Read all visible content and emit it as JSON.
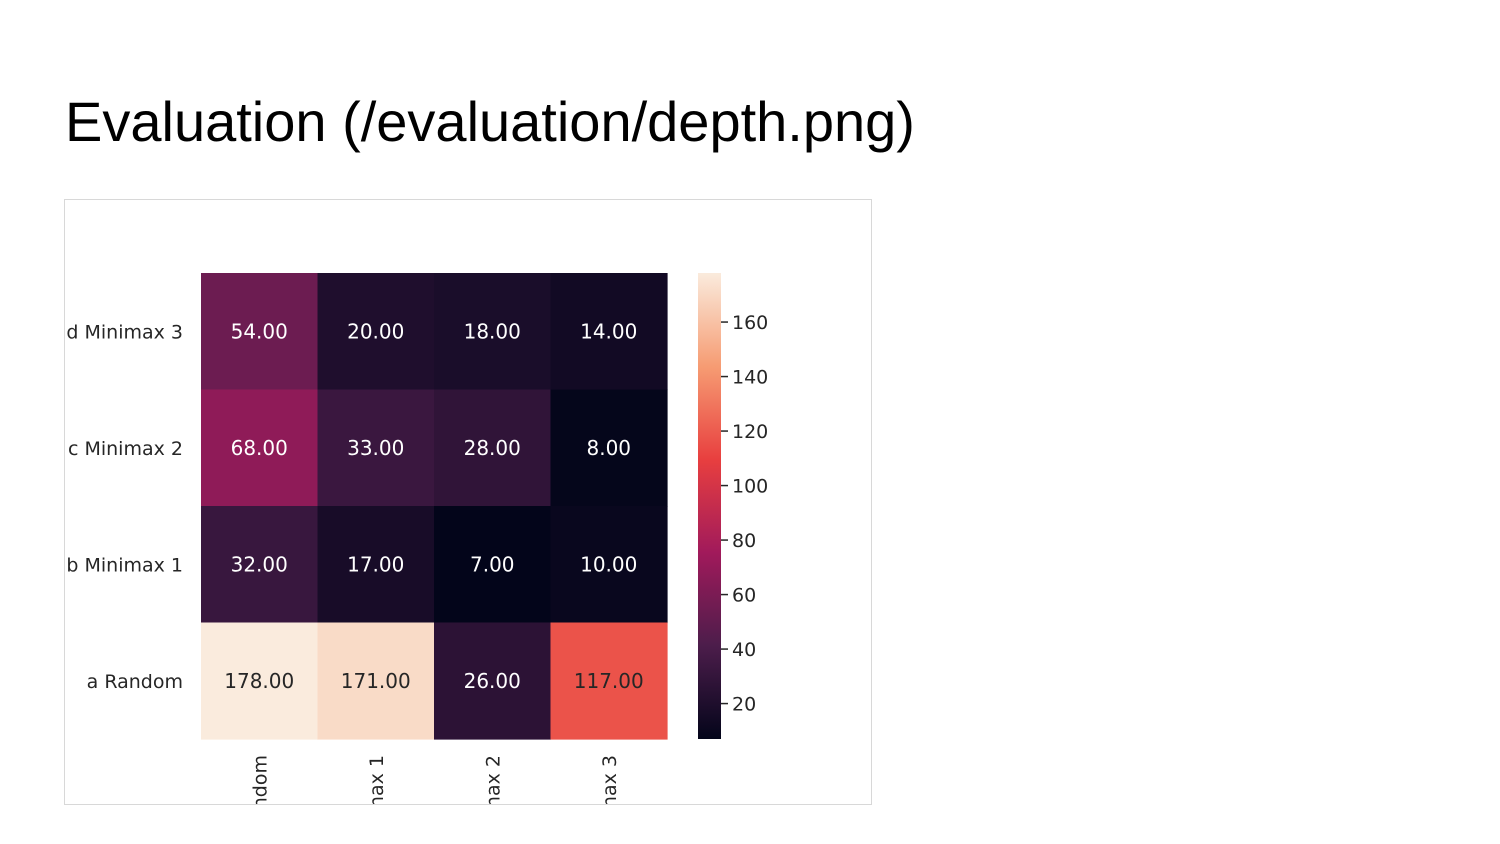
{
  "slide": {
    "title": "Evaluation (/evaluation/depth.png)"
  },
  "chart_data": {
    "type": "heatmap",
    "rows": [
      "d Minimax 3",
      "c Minimax 2",
      "b Minimax 1",
      "a Random"
    ],
    "columns": [
      "ndom",
      "nax 1",
      "nax 2",
      "nax 3"
    ],
    "values": [
      [
        54.0,
        20.0,
        18.0,
        14.0
      ],
      [
        68.0,
        33.0,
        28.0,
        8.0
      ],
      [
        32.0,
        17.0,
        7.0,
        10.0
      ],
      [
        178.0,
        171.0,
        26.0,
        117.0
      ]
    ],
    "value_format": "2 decimals",
    "colormap": "rocket",
    "colorbar": {
      "vmin": 7,
      "vmax": 178,
      "ticks": [
        20,
        40,
        60,
        80,
        100,
        120,
        140,
        160
      ]
    },
    "colors": {
      "colormap_stops": [
        "#03051a",
        "#4c1d4b",
        "#a11a5b",
        "#e83f3f",
        "#f69c73",
        "#faebdd"
      ]
    }
  }
}
